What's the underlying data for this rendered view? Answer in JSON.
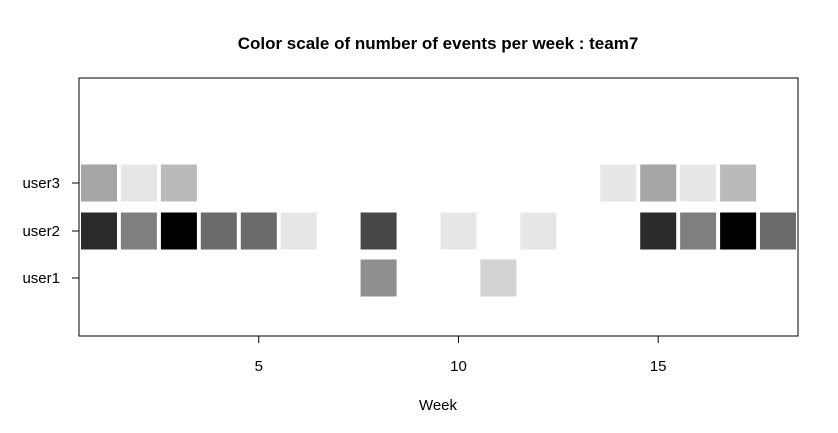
{
  "chart_data": {
    "type": "heatmap",
    "title": "Color scale of number of events per week :  team7",
    "xlabel": "Week",
    "ylabel": "",
    "xlim": [
      0.5,
      18.5
    ],
    "x_ticks": [
      "5",
      "10",
      "15"
    ],
    "rows": [
      "user1",
      "user2",
      "user3"
    ],
    "grid": false,
    "legend": "none",
    "cells": [
      {
        "user": "user3",
        "week": 1,
        "color": "#a6a6a6"
      },
      {
        "user": "user3",
        "week": 2,
        "color": "#e6e6e6"
      },
      {
        "user": "user3",
        "week": 3,
        "color": "#bababa"
      },
      {
        "user": "user3",
        "week": 14,
        "color": "#e6e6e6"
      },
      {
        "user": "user3",
        "week": 15,
        "color": "#a6a6a6"
      },
      {
        "user": "user3",
        "week": 16,
        "color": "#e6e6e6"
      },
      {
        "user": "user3",
        "week": 17,
        "color": "#bababa"
      },
      {
        "user": "user2",
        "week": 1,
        "color": "#2b2b2b"
      },
      {
        "user": "user2",
        "week": 2,
        "color": "#7f7f7f"
      },
      {
        "user": "user2",
        "week": 3,
        "color": "#000000"
      },
      {
        "user": "user2",
        "week": 4,
        "color": "#6b6b6b"
      },
      {
        "user": "user2",
        "week": 5,
        "color": "#6b6b6b"
      },
      {
        "user": "user2",
        "week": 6,
        "color": "#e6e6e6"
      },
      {
        "user": "user2",
        "week": 8,
        "color": "#474747"
      },
      {
        "user": "user2",
        "week": 10,
        "color": "#e6e6e6"
      },
      {
        "user": "user2",
        "week": 12,
        "color": "#e6e6e6"
      },
      {
        "user": "user2",
        "week": 15,
        "color": "#2b2b2b"
      },
      {
        "user": "user2",
        "week": 16,
        "color": "#7f7f7f"
      },
      {
        "user": "user2",
        "week": 17,
        "color": "#000000"
      },
      {
        "user": "user2",
        "week": 18,
        "color": "#6b6b6b"
      },
      {
        "user": "user1",
        "week": 8,
        "color": "#8f8f8f"
      },
      {
        "user": "user1",
        "week": 11,
        "color": "#d3d3d3"
      }
    ]
  }
}
